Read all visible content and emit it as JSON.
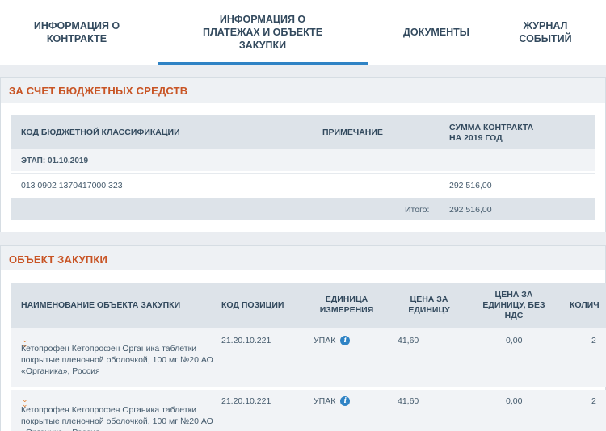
{
  "tabs": [
    {
      "label": "ИНФОРМАЦИЯ О КОНТРАКТЕ"
    },
    {
      "label": "ИНФОРМАЦИЯ О ПЛАТЕЖАХ И ОБЪЕКТЕ ЗАКУПКИ"
    },
    {
      "label": "ДОКУМЕНТЫ"
    },
    {
      "label": "ЖУРНАЛ СОБЫТИЙ"
    }
  ],
  "budget": {
    "title": "ЗА СЧЕТ БЮДЖЕТНЫХ СРЕДСТВ",
    "headers": {
      "kbk": "КОД БЮДЖЕТНОЙ КЛАССИФИКАЦИИ",
      "note": "ПРИМЕЧАНИЕ",
      "sum": "СУММА КОНТРАКТА НА 2019 ГОД"
    },
    "stage": "ЭТАП: 01.10.2019",
    "row": {
      "kbk": "013 0902 1370417000 323",
      "sum": "292 516,00"
    },
    "total_label": "Итого:",
    "total_value": "292 516,00"
  },
  "purchase": {
    "title": "ОБЪЕКТ ЗАКУПКИ",
    "headers": {
      "name": "НАИМЕНОВАНИЕ ОБЪЕКТА ЗАКУПКИ",
      "code": "КОД ПОЗИЦИИ",
      "unit": "ЕДИНИЦА ИЗМЕРЕНИЯ",
      "price": "ЦЕНА ЗА ЕДИНИЦУ",
      "price_no_vat": "ЦЕНА ЗА ЕДИНИЦУ, БЕЗ НДС",
      "qty": "КОЛИЧ"
    },
    "rows": [
      {
        "name": "Кетопрофен Кетопрофен Органика таблетки покрытые пленочной оболочкой, 100 мг №20 АО «Органика», Россия",
        "code": "21.20.10.221",
        "unit": "УПАК",
        "price": "41,60",
        "price_no_vat": "0,00",
        "qty": "2"
      },
      {
        "name": "Кетопрофен Кетопрофен Органика таблетки покрытые пленочной оболочкой, 100 мг №20 АО «Органика», Россия",
        "code": "21.20.10.221",
        "unit": "УПАК",
        "price": "41,60",
        "price_no_vat": "0,00",
        "qty": "2"
      }
    ]
  },
  "icons": {
    "info": "info-icon",
    "expand": "chevron-double-down-icon"
  },
  "colors": {
    "accent": "#2f83c5",
    "title": "#c85424",
    "header_bg": "#dde3e9"
  }
}
